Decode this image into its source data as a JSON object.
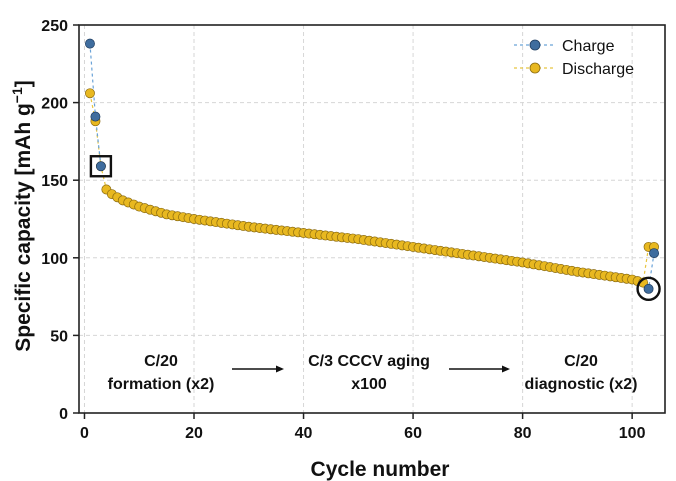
{
  "chart_data": {
    "type": "scatter",
    "xlabel": "Cycle number",
    "ylabel": "Specific capacity [mAh g",
    "ylabel_sup": "−1",
    "ylabel_end": "]",
    "xlim": [
      -1,
      106
    ],
    "ylim": [
      0,
      250
    ],
    "x_ticks": [
      0,
      20,
      40,
      60,
      80,
      100
    ],
    "y_ticks": [
      0,
      50,
      100,
      150,
      200,
      250
    ],
    "grid": true,
    "legend_position": "top-right",
    "series": [
      {
        "name": "Charge",
        "color": "#3f6d9e",
        "line_color": "#6aa3d8",
        "points": [
          [
            1,
            238
          ],
          [
            2,
            191
          ],
          [
            3,
            159
          ],
          [
            103,
            80
          ],
          [
            104,
            103
          ]
        ]
      },
      {
        "name": "Discharge",
        "color": "#e8b820",
        "line_color": "#e8c540",
        "points": [
          [
            1,
            206
          ],
          [
            2,
            188
          ],
          [
            3,
            159
          ]
        ],
        "trend": {
          "from_cycle": 4,
          "to_cycle": 102,
          "knots": [
            [
              4,
              144
            ],
            [
              5,
              141
            ],
            [
              7,
              137
            ],
            [
              10,
              133
            ],
            [
              15,
              128
            ],
            [
              20,
              125
            ],
            [
              30,
              120
            ],
            [
              40,
              116
            ],
            [
              50,
              112
            ],
            [
              60,
              107
            ],
            [
              70,
              102
            ],
            [
              80,
              97
            ],
            [
              90,
              91
            ],
            [
              100,
              86
            ],
            [
              102,
              84
            ]
          ]
        },
        "extra_points": [
          [
            103,
            107
          ],
          [
            104,
            107
          ]
        ]
      }
    ],
    "annotations": [
      {
        "id": "formation",
        "lines": [
          "C/20",
          "formation (x2)"
        ]
      },
      {
        "id": "aging",
        "lines": [
          "C/3 CCCV aging",
          "x100"
        ]
      },
      {
        "id": "diagnostic",
        "lines": [
          "C/20",
          "diagnostic (x2)"
        ]
      }
    ],
    "markers": [
      {
        "shape": "square",
        "at": [
          3,
          159
        ]
      },
      {
        "shape": "circle",
        "at": [
          103,
          80
        ]
      }
    ]
  }
}
